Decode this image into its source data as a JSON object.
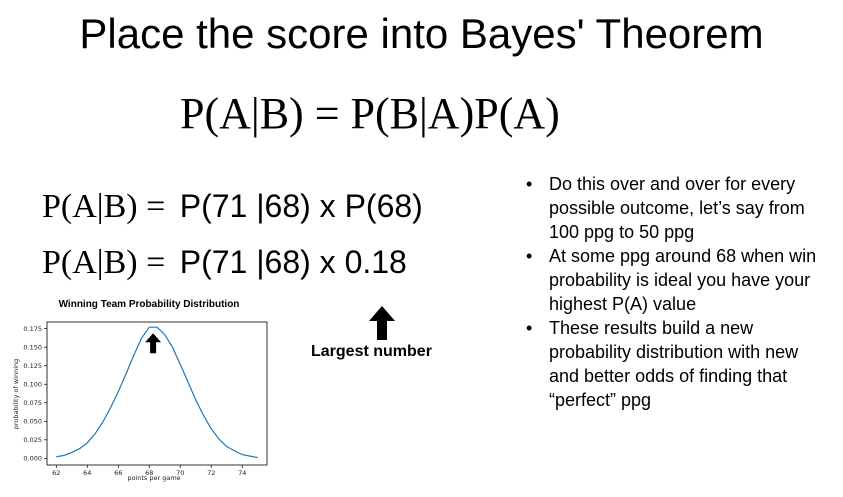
{
  "title": "Place the score into Bayes' Theorem",
  "main_formula": "P(A|B) = P(B|A)P(A)",
  "equations": [
    {
      "left": "P(A|B) =",
      "right": "P(71 |68) x P(68)"
    },
    {
      "left": "P(A|B) =",
      "right": "P(71 |68) x 0.18"
    }
  ],
  "bullets": [
    "Do this over and over for every possible outcome, let’s say from 100 ppg to 50 ppg",
    "At some ppg around 68 when win probability is ideal you have your highest P(A) value",
    "These results build a new probability distribution with new and better odds of finding that “perfect” ppg"
  ],
  "annotation": "Largest number",
  "icons": {
    "annotation_arrow": "up-arrow-icon",
    "chart_arrow": "up-arrow-icon"
  },
  "chart_data": {
    "type": "line",
    "title": "Winning Team Probability Distribution",
    "xlabel": "points per game",
    "ylabel": "probability of winning",
    "xlim": [
      61.4,
      75.6
    ],
    "ylim": [
      -0.009,
      0.184
    ],
    "xticks": [
      62,
      64,
      66,
      68,
      70,
      72,
      74
    ],
    "yticks": [
      0.0,
      0.025,
      0.05,
      0.075,
      0.1,
      0.125,
      0.15,
      0.175
    ],
    "ytick_labels": [
      "0.000",
      "0.025",
      "0.050",
      "0.075",
      "0.100",
      "0.125",
      "0.150",
      "0.175"
    ],
    "series": [
      {
        "color": "#1f77b4",
        "x": [
          62,
          62.5,
          63,
          63.5,
          64,
          64.5,
          65,
          65.5,
          66,
          66.5,
          67,
          67.5,
          68,
          68.5,
          69,
          69.5,
          70,
          70.5,
          71,
          71.5,
          72,
          72.5,
          73,
          73.5,
          74,
          74.5,
          75
        ],
        "y": [
          0.002,
          0.004,
          0.008,
          0.013,
          0.021,
          0.033,
          0.049,
          0.068,
          0.09,
          0.114,
          0.139,
          0.162,
          0.177,
          0.177,
          0.167,
          0.15,
          0.127,
          0.103,
          0.079,
          0.058,
          0.04,
          0.026,
          0.016,
          0.01,
          0.005,
          0.003,
          0.001
        ]
      }
    ],
    "grid": false
  }
}
